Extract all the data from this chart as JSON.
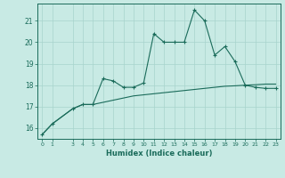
{
  "xlabel": "Humidex (Indice chaleur)",
  "ylabel": "",
  "background_color": "#c8eae4",
  "grid_color": "#a8d4cc",
  "line_color": "#1a6b5a",
  "x_line1": [
    0,
    1,
    3,
    4,
    5,
    6,
    7,
    8,
    9,
    10,
    11,
    12,
    13,
    14,
    15,
    16,
    17,
    18,
    19,
    20,
    21,
    22,
    23
  ],
  "y_line1": [
    15.7,
    16.2,
    16.9,
    17.1,
    17.1,
    18.3,
    18.2,
    17.9,
    17.9,
    18.1,
    20.4,
    20.0,
    20.0,
    20.0,
    21.5,
    21.0,
    19.4,
    19.8,
    19.1,
    18.0,
    17.9,
    17.85,
    17.85
  ],
  "x_line2": [
    0,
    1,
    3,
    4,
    5,
    6,
    7,
    8,
    9,
    10,
    11,
    12,
    13,
    14,
    15,
    16,
    17,
    18,
    19,
    20,
    21,
    22,
    23
  ],
  "y_line2": [
    15.7,
    16.2,
    16.9,
    17.1,
    17.1,
    17.2,
    17.3,
    17.4,
    17.5,
    17.55,
    17.6,
    17.65,
    17.7,
    17.75,
    17.8,
    17.85,
    17.9,
    17.95,
    17.97,
    18.0,
    18.02,
    18.05,
    18.05
  ],
  "ylim": [
    15.5,
    21.8
  ],
  "yticks": [
    16,
    17,
    18,
    19,
    20,
    21
  ],
  "xticks": [
    0,
    1,
    3,
    4,
    5,
    6,
    7,
    8,
    9,
    10,
    11,
    12,
    13,
    14,
    15,
    16,
    17,
    18,
    19,
    20,
    21,
    22,
    23
  ],
  "xlim": [
    -0.5,
    23.5
  ]
}
